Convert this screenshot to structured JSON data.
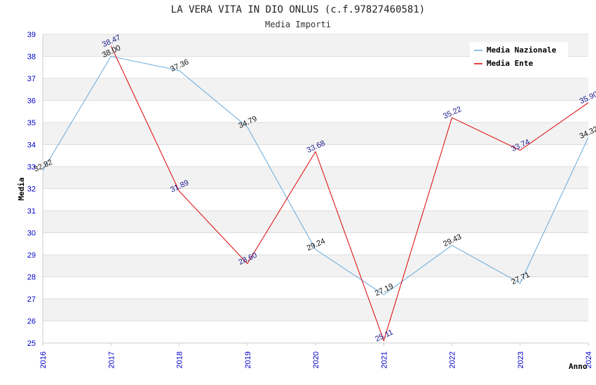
{
  "title": "LA VERA VITA IN DIO ONLUS (c.f.97827460581)",
  "subtitle": "Media Importi",
  "chart_data": {
    "type": "line",
    "x": [
      "2016",
      "2017",
      "2018",
      "2019",
      "2020",
      "2021",
      "2022",
      "2023",
      "2024"
    ],
    "ylabel": "Media",
    "xlabel": "Anno",
    "ylim": [
      25,
      39
    ],
    "yticks": [
      25,
      26,
      27,
      28,
      29,
      30,
      31,
      32,
      33,
      34,
      35,
      36,
      37,
      38,
      39
    ],
    "grid": true,
    "legend_position": "top-right",
    "series": [
      {
        "name": "Media Nazionale",
        "color": "#66aadd",
        "values": [
          32.82,
          38.0,
          37.36,
          34.79,
          29.24,
          27.19,
          29.43,
          27.71,
          34.32
        ],
        "labels": [
          "32.82",
          "38.00",
          "37.36",
          "34.79",
          "29.24",
          "27.19",
          "29.43",
          "27.71",
          "34.32"
        ]
      },
      {
        "name": "Media Ente",
        "color": "#dd0000",
        "values": [
          null,
          38.47,
          31.89,
          28.6,
          33.68,
          25.11,
          35.22,
          33.74,
          35.9
        ],
        "labels": [
          "",
          "38.47",
          "31.89",
          "28.60",
          "33.68",
          "25.11",
          "35.22",
          "33.74",
          "35.90"
        ]
      }
    ]
  }
}
